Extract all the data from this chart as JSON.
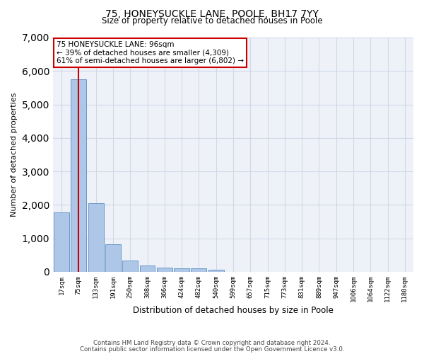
{
  "title": "75, HONEYSUCKLE LANE, POOLE, BH17 7YY",
  "subtitle": "Size of property relative to detached houses in Poole",
  "xlabel": "Distribution of detached houses by size in Poole",
  "ylabel": "Number of detached properties",
  "footer_line1": "Contains HM Land Registry data © Crown copyright and database right 2024.",
  "footer_line2": "Contains public sector information licensed under the Open Government Licence v3.0.",
  "bin_labels": [
    "17sqm",
    "75sqm",
    "133sqm",
    "191sqm",
    "250sqm",
    "308sqm",
    "366sqm",
    "424sqm",
    "482sqm",
    "540sqm",
    "599sqm",
    "657sqm",
    "715sqm",
    "773sqm",
    "831sqm",
    "889sqm",
    "947sqm",
    "1006sqm",
    "1064sqm",
    "1122sqm",
    "1180sqm"
  ],
  "bar_values": [
    1780,
    5750,
    2060,
    820,
    340,
    190,
    130,
    110,
    105,
    70,
    0,
    0,
    0,
    0,
    0,
    0,
    0,
    0,
    0,
    0,
    0
  ],
  "bar_color": "#aec6e8",
  "bar_edge_color": "#5a8fc0",
  "highlight_bar_index": 1,
  "highlight_color": "#cc0000",
  "annotation_text": "75 HONEYSUCKLE LANE: 96sqm\n← 39% of detached houses are smaller (4,309)\n61% of semi-detached houses are larger (6,802) →",
  "annotation_box_color": "#ffffff",
  "annotation_box_edge_color": "#cc0000",
  "ylim": [
    0,
    7000
  ],
  "yticks": [
    0,
    1000,
    2000,
    3000,
    4000,
    5000,
    6000,
    7000
  ],
  "grid_color": "#d0d8e8",
  "plot_background": "#eef2f8"
}
